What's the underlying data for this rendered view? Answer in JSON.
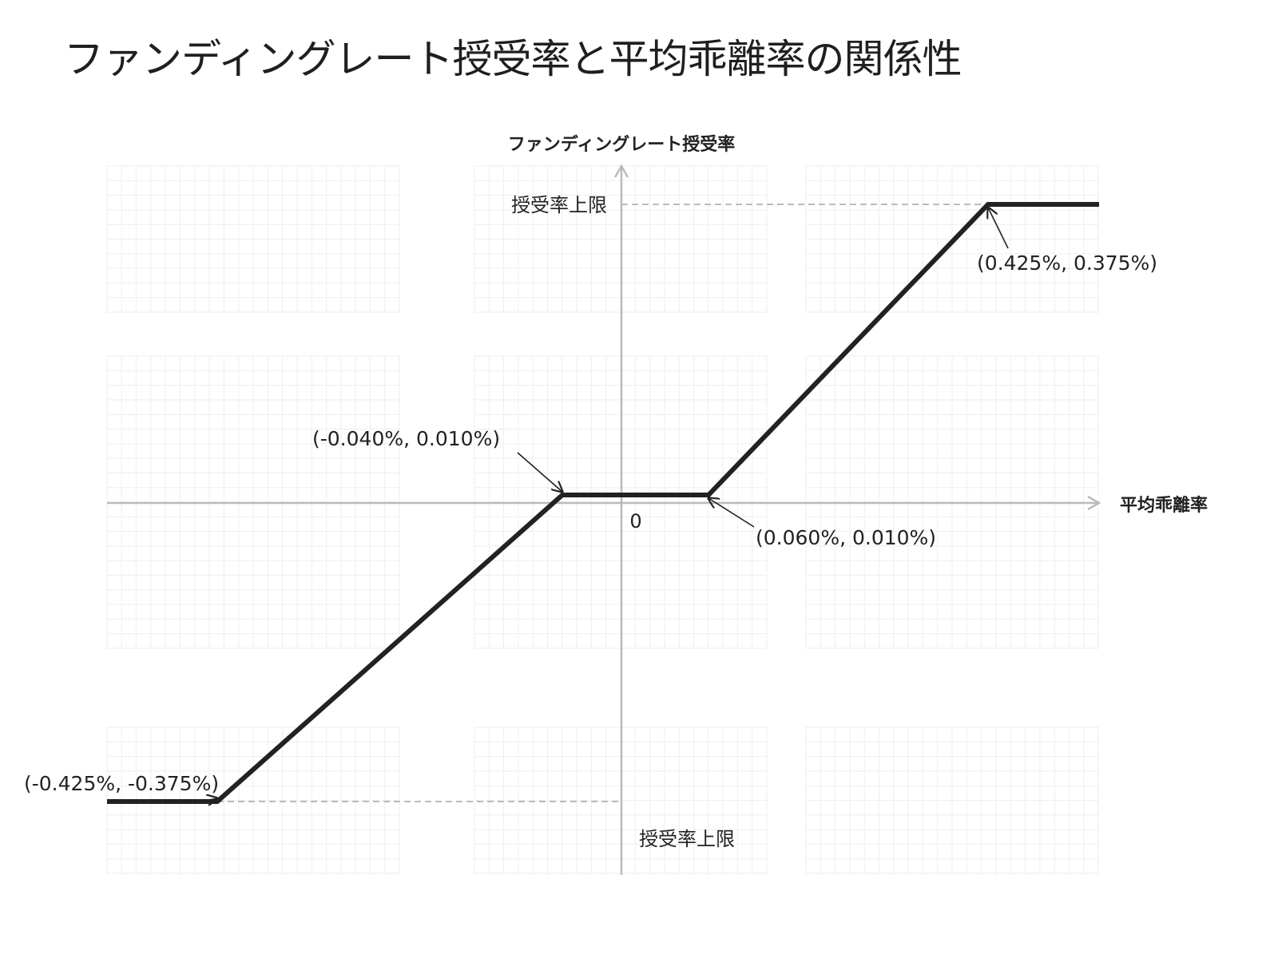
{
  "title": "ファンディングレート授受率と平均乖離率の関係性",
  "chart_data": {
    "type": "line",
    "title": "ファンディングレート授受率と平均乖離率の関係性",
    "xlabel": "平均乖離率",
    "ylabel": "ファンディングレート授受率",
    "origin_label": "0",
    "x": [
      -0.5,
      -0.425,
      -0.04,
      0.06,
      0.425,
      0.5
    ],
    "y": [
      -0.375,
      -0.375,
      0.01,
      0.01,
      0.375,
      0.375
    ],
    "xlim": [
      -0.5,
      0.5
    ],
    "ylim": [
      -0.45,
      0.45
    ],
    "grid": true,
    "cap_label_top": "授受率上限",
    "cap_label_bottom": "授受率上限",
    "annotations": [
      {
        "text": "(-0.425%, -0.375%)",
        "x": -0.425,
        "y": -0.375
      },
      {
        "text": "(-0.040%, 0.010%)",
        "x": -0.04,
        "y": 0.01
      },
      {
        "text": "(0.060%, 0.010%)",
        "x": 0.06,
        "y": 0.01
      },
      {
        "text": "(0.425%, 0.375%)",
        "x": 0.425,
        "y": 0.375
      }
    ],
    "colors": {
      "line": "#222222",
      "axis": "#bbbbbb",
      "grid": "#eeeeee",
      "reference": "#bbbbbb"
    }
  }
}
